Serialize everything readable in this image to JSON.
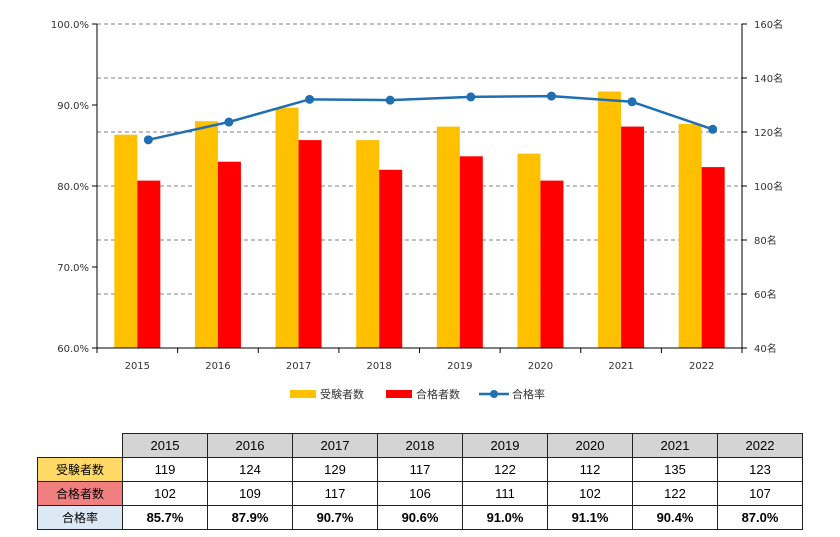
{
  "chart_data": {
    "type": "bar",
    "categories": [
      "2015",
      "2016",
      "2017",
      "2018",
      "2019",
      "2020",
      "2021",
      "2022"
    ],
    "series": [
      {
        "name": "受験者数",
        "type": "bar",
        "axis": "right",
        "color": "#ffc000",
        "values": [
          119,
          124,
          129,
          117,
          122,
          112,
          135,
          123
        ]
      },
      {
        "name": "合格者数",
        "type": "bar",
        "axis": "right",
        "color": "#ff0000",
        "values": [
          102,
          109,
          117,
          106,
          111,
          102,
          122,
          107
        ]
      },
      {
        "name": "合格率",
        "type": "line",
        "axis": "left",
        "color": "#1f6fb2",
        "values": [
          85.7,
          87.9,
          90.7,
          90.6,
          91.0,
          91.1,
          90.4,
          87.0
        ]
      }
    ],
    "y_left": {
      "ylim": [
        60,
        100
      ],
      "ticks": [
        "60.0%",
        "70.0%",
        "80.0%",
        "90.0%",
        "100.0%"
      ]
    },
    "y_right": {
      "ylim": [
        40,
        160
      ],
      "ticks": [
        "40名",
        "60名",
        "80名",
        "100名",
        "120名",
        "140名",
        "160名"
      ]
    },
    "grid": true,
    "legend": "bottom"
  },
  "table": {
    "years": [
      "2015",
      "2016",
      "2017",
      "2018",
      "2019",
      "2020",
      "2021",
      "2022"
    ],
    "rows": [
      {
        "label": "受験者数",
        "values": [
          "119",
          "124",
          "129",
          "117",
          "122",
          "112",
          "135",
          "123"
        ]
      },
      {
        "label": "合格者数",
        "values": [
          "102",
          "109",
          "117",
          "106",
          "111",
          "102",
          "122",
          "107"
        ]
      },
      {
        "label": "合格率",
        "values": [
          "85.7%",
          "87.9%",
          "90.7%",
          "90.6%",
          "91.0%",
          "91.1%",
          "90.4%",
          "87.0%"
        ]
      }
    ]
  }
}
